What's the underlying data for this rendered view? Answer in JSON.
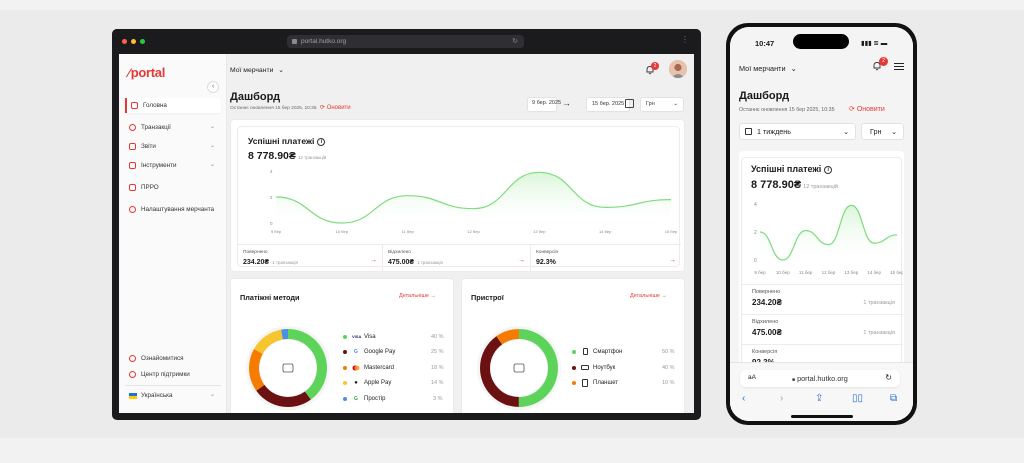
{
  "colors": {
    "accent": "#e53935",
    "chart_line": "#7ddc7b",
    "chart_fill": "#d8f5d7"
  },
  "browser": {
    "url": "portal.hutko.org"
  },
  "sidebar": {
    "logo_text": "portal",
    "items": [
      {
        "label": "Головна",
        "icon": "home-icon"
      },
      {
        "label": "Транзакції",
        "icon": "transactions-icon"
      },
      {
        "label": "Звіти",
        "icon": "reports-icon"
      },
      {
        "label": "Інструменти",
        "icon": "tools-icon"
      },
      {
        "label": "ПРРО",
        "icon": "receipt-icon"
      },
      {
        "label": "Налаштування мерчанта",
        "icon": "settings-icon"
      }
    ],
    "bottom": [
      {
        "label": "Ознайомитися",
        "icon": "eye-icon"
      },
      {
        "label": "Центр підтримки",
        "icon": "help-icon"
      }
    ],
    "language": "Українська"
  },
  "header": {
    "merchant_select": "Мої мерчанти",
    "notification_count": "2"
  },
  "dashboard": {
    "title": "Дашборд",
    "last_update": "Останнє оновлення 15 бер 2025, 10:35",
    "refresh_label": "Оновити",
    "date_from": "9 бер. 2025",
    "date_to": "15 бер. 2025",
    "currency": "Грн",
    "period": "1 тиждень",
    "payments": {
      "title": "Успішні платежі",
      "amount": "8 778.90₴",
      "count": "12 транзакцій"
    },
    "stats": [
      {
        "label": "Повернено",
        "value": "234.20₴",
        "sub": "1 транзакція"
      },
      {
        "label": "Відхилено",
        "value": "475.00₴",
        "sub": "1 транзакція"
      },
      {
        "label": "Конверсія",
        "value": "92.3%",
        "sub": ""
      }
    ],
    "payment_methods": {
      "title": "Платіжні методи",
      "details": "Детальніше",
      "items": [
        {
          "name": "Visa",
          "pct": "40 %",
          "color": "#5ed35a",
          "icon": "visa-icon"
        },
        {
          "name": "Google Pay",
          "pct": "25 %",
          "color": "#6b1111",
          "icon": "google-icon"
        },
        {
          "name": "Mastercard",
          "pct": "18 %",
          "color": "#f57c00",
          "icon": "mastercard-icon"
        },
        {
          "name": "Apple Pay",
          "pct": "14 %",
          "color": "#f7c62f",
          "icon": "apple-icon"
        },
        {
          "name": "Простір",
          "pct": "3 %",
          "color": "#4a90e2",
          "icon": "prostir-icon"
        }
      ]
    },
    "devices": {
      "title": "Пристрої",
      "details": "Детальніше",
      "items": [
        {
          "name": "Смартфон",
          "pct": "50 %",
          "color": "#5ed35a",
          "icon": "smartphone-icon"
        },
        {
          "name": "Ноутбук",
          "pct": "40 %",
          "color": "#6b1111",
          "icon": "laptop-icon"
        },
        {
          "name": "Планшет",
          "pct": "10 %",
          "color": "#f57c00",
          "icon": "tablet-icon"
        }
      ]
    }
  },
  "phone": {
    "time": "10:47",
    "aa_label": "aA",
    "url": "portal.hutko.org"
  },
  "chart_data": [
    {
      "type": "area",
      "x": [
        "9 бер",
        "10 бер",
        "11 бер",
        "12 бер",
        "13 бер",
        "14 бер",
        "15 бер"
      ],
      "y": [
        2.0,
        0.0,
        2.1,
        1.1,
        3.9,
        1.2,
        1.8
      ],
      "ylim": [
        0,
        4
      ],
      "yticks": [
        "0",
        "2",
        "4"
      ],
      "grid": false
    },
    {
      "type": "pie",
      "labels": [
        "Visa",
        "Google Pay",
        "Mastercard",
        "Apple Pay",
        "Простір"
      ],
      "values": [
        40,
        25,
        18,
        14,
        3
      ]
    },
    {
      "type": "pie",
      "labels": [
        "Смартфон",
        "Ноутбук",
        "Планшет"
      ],
      "values": [
        50,
        40,
        10
      ]
    }
  ]
}
